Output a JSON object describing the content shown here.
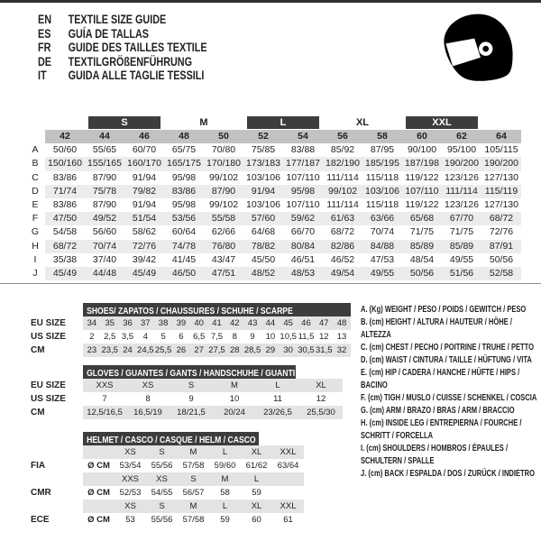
{
  "header": {
    "languages": [
      {
        "code": "EN",
        "title": "TEXTILE SIZE GUIDE"
      },
      {
        "code": "ES",
        "title": "GUÍA DE TALLAS"
      },
      {
        "code": "FR",
        "title": "GUIDE DES TAILLES TEXTILE"
      },
      {
        "code": "DE",
        "title": "TEXTILGRÖßENFÜHRUNG"
      },
      {
        "code": "IT",
        "title": "GUIDA ALLE TAGLIE TESSILI"
      }
    ],
    "helmet_icon": "racing-helmet"
  },
  "main_size_table": {
    "size_groups": [
      {
        "label": "",
        "span": 1,
        "dark": false
      },
      {
        "label": "S",
        "span": 2,
        "dark": true
      },
      {
        "label": "M",
        "span": 2,
        "dark": false
      },
      {
        "label": "L",
        "span": 2,
        "dark": true
      },
      {
        "label": "XL",
        "span": 2,
        "dark": false
      },
      {
        "label": "XXL",
        "span": 2,
        "dark": true
      },
      {
        "label": "",
        "span": 1,
        "dark": false
      }
    ],
    "columns": [
      "42",
      "44",
      "46",
      "48",
      "50",
      "52",
      "54",
      "56",
      "58",
      "60",
      "62",
      "64"
    ],
    "rows": [
      {
        "label": "A",
        "values": [
          "50/60",
          "55/65",
          "60/70",
          "65/75",
          "70/80",
          "75/85",
          "83/88",
          "85/92",
          "87/95",
          "90/100",
          "95/100",
          "105/115"
        ]
      },
      {
        "label": "B",
        "values": [
          "150/160",
          "155/165",
          "160/170",
          "165/175",
          "170/180",
          "173/183",
          "177/187",
          "182/190",
          "185/195",
          "187/198",
          "190/200",
          "190/200"
        ]
      },
      {
        "label": "C",
        "values": [
          "83/86",
          "87/90",
          "91/94",
          "95/98",
          "99/102",
          "103/106",
          "107/110",
          "111/114",
          "115/118",
          "119/122",
          "123/126",
          "127/130"
        ]
      },
      {
        "label": "D",
        "values": [
          "71/74",
          "75/78",
          "79/82",
          "83/86",
          "87/90",
          "91/94",
          "95/98",
          "99/102",
          "103/106",
          "107/110",
          "111/114",
          "115/119"
        ]
      },
      {
        "label": "E",
        "values": [
          "83/86",
          "87/90",
          "91/94",
          "95/98",
          "99/102",
          "103/106",
          "107/110",
          "111/114",
          "115/118",
          "119/122",
          "123/126",
          "127/130"
        ]
      },
      {
        "label": "F",
        "values": [
          "47/50",
          "49/52",
          "51/54",
          "53/56",
          "55/58",
          "57/60",
          "59/62",
          "61/63",
          "63/66",
          "65/68",
          "67/70",
          "68/72"
        ]
      },
      {
        "label": "G",
        "values": [
          "54/58",
          "56/60",
          "58/62",
          "60/64",
          "62/66",
          "64/68",
          "66/70",
          "68/72",
          "70/74",
          "71/75",
          "71/75",
          "72/76"
        ]
      },
      {
        "label": "H",
        "values": [
          "68/72",
          "70/74",
          "72/76",
          "74/78",
          "76/80",
          "78/82",
          "80/84",
          "82/86",
          "84/88",
          "85/89",
          "85/89",
          "87/91"
        ]
      },
      {
        "label": "I",
        "values": [
          "35/38",
          "37/40",
          "39/42",
          "41/45",
          "43/47",
          "45/50",
          "46/51",
          "46/52",
          "47/53",
          "48/54",
          "49/55",
          "50/56"
        ]
      },
      {
        "label": "J",
        "values": [
          "45/49",
          "44/48",
          "45/49",
          "46/50",
          "47/51",
          "48/52",
          "48/53",
          "49/54",
          "49/55",
          "50/56",
          "51/56",
          "52/58"
        ]
      }
    ]
  },
  "shoes_table": {
    "title": "SHOES/ ZAPATOS / CHAUSSURES / SCHUHE / SCARPE",
    "rows": [
      {
        "label": "EU SIZE",
        "band": true,
        "values": [
          "34",
          "35",
          "36",
          "37",
          "38",
          "39",
          "40",
          "41",
          "42",
          "43",
          "44",
          "45",
          "46",
          "47",
          "48"
        ]
      },
      {
        "label": "US SIZE",
        "band": false,
        "values": [
          "2",
          "2,5",
          "3,5",
          "4",
          "5",
          "6",
          "6,5",
          "7,5",
          "8",
          "9",
          "10",
          "10,5",
          "11,5",
          "12",
          "13"
        ]
      },
      {
        "label": "CM",
        "band": true,
        "values": [
          "23",
          "23,5",
          "24",
          "24,5",
          "25,5",
          "26",
          "27",
          "27,5",
          "28",
          "28,5",
          "29",
          "30",
          "30,5",
          "31,5",
          "32"
        ]
      }
    ]
  },
  "gloves_table": {
    "title": "GLOVES / GUANTES / GANTS / HANDSCHUHE / GUANTI",
    "rows": [
      {
        "label": "EU SIZE",
        "band": true,
        "values": [
          "XXS",
          "XS",
          "S",
          "M",
          "L",
          "XL"
        ]
      },
      {
        "label": "US SIZE",
        "band": false,
        "values": [
          "7",
          "8",
          "9",
          "10",
          "11",
          "12"
        ]
      },
      {
        "label": "CM",
        "band": true,
        "values": [
          "12,5/16,5",
          "16,5/19",
          "18/21,5",
          "20/24",
          "23/26,5",
          "25,5/30"
        ]
      }
    ]
  },
  "helmet_table": {
    "title": "HELMET / CASCO / CASQUE / HELM / CASCO",
    "rows": [
      {
        "label": "",
        "prefix": "",
        "band": true,
        "values": [
          "XS",
          "S",
          "M",
          "L",
          "XL",
          "XXL"
        ]
      },
      {
        "label": "FIA",
        "prefix": "Ø CM",
        "band": false,
        "values": [
          "53/54",
          "55/56",
          "57/58",
          "59/60",
          "61/62",
          "63/64"
        ]
      },
      {
        "label": "",
        "prefix": "",
        "band": true,
        "values": [
          "XXS",
          "XS",
          "S",
          "M",
          "L",
          ""
        ]
      },
      {
        "label": "CMR",
        "prefix": "Ø CM",
        "band": false,
        "values": [
          "52/53",
          "54/55",
          "56/57",
          "58",
          "59",
          ""
        ]
      },
      {
        "label": "",
        "prefix": "",
        "band": true,
        "values": [
          "XS",
          "S",
          "M",
          "L",
          "XL",
          "XXL"
        ]
      },
      {
        "label": "ECE",
        "prefix": "Ø CM",
        "band": false,
        "values": [
          "53",
          "55/56",
          "57/58",
          "59",
          "60",
          "61"
        ]
      }
    ]
  },
  "legend": {
    "items": [
      "A. (Kg) WEIGHT / PESO / POIDS / GEWITCH / PESO",
      "B. (cm) HEIGHT / ALTURA / HAUTEUR / HÖHE / ALTEZZA",
      "C. (cm) CHEST / PECHO / POITRINE / TRUHE / PETTO",
      "D. (cm) WAIST / CINTURA / TAILLE / HÜFTUNG / VITA",
      "E. (cm) HIP / CADERA / HANCHE / HÜFTE / HIPS /  BACINO",
      "F. (cm) TIGH / MUSLO / CUISSE / SCHENKEL / COSCIA",
      "G. (cm) ARM  / BRAZO / BRAS / ARM / BRACCIO",
      "H. (cm) INSIDE LEG / ENTREPIERNA / FOURCHE / SCHRITT / FORCELLA",
      "I.  (cm) SHOULDERS / HOMBROS / ÉPAULES / SCHULTERN / SPALLE",
      "J. (cm) BACK / ESPALDA / DOS / ZURÜCK / INDIETRO"
    ]
  },
  "colors": {
    "dark_bar": "#3d3d3d",
    "header_band": "#c2c2c2",
    "row_alt": "#ececec",
    "sub_band": "#e3e3e3",
    "text": "#222222"
  }
}
